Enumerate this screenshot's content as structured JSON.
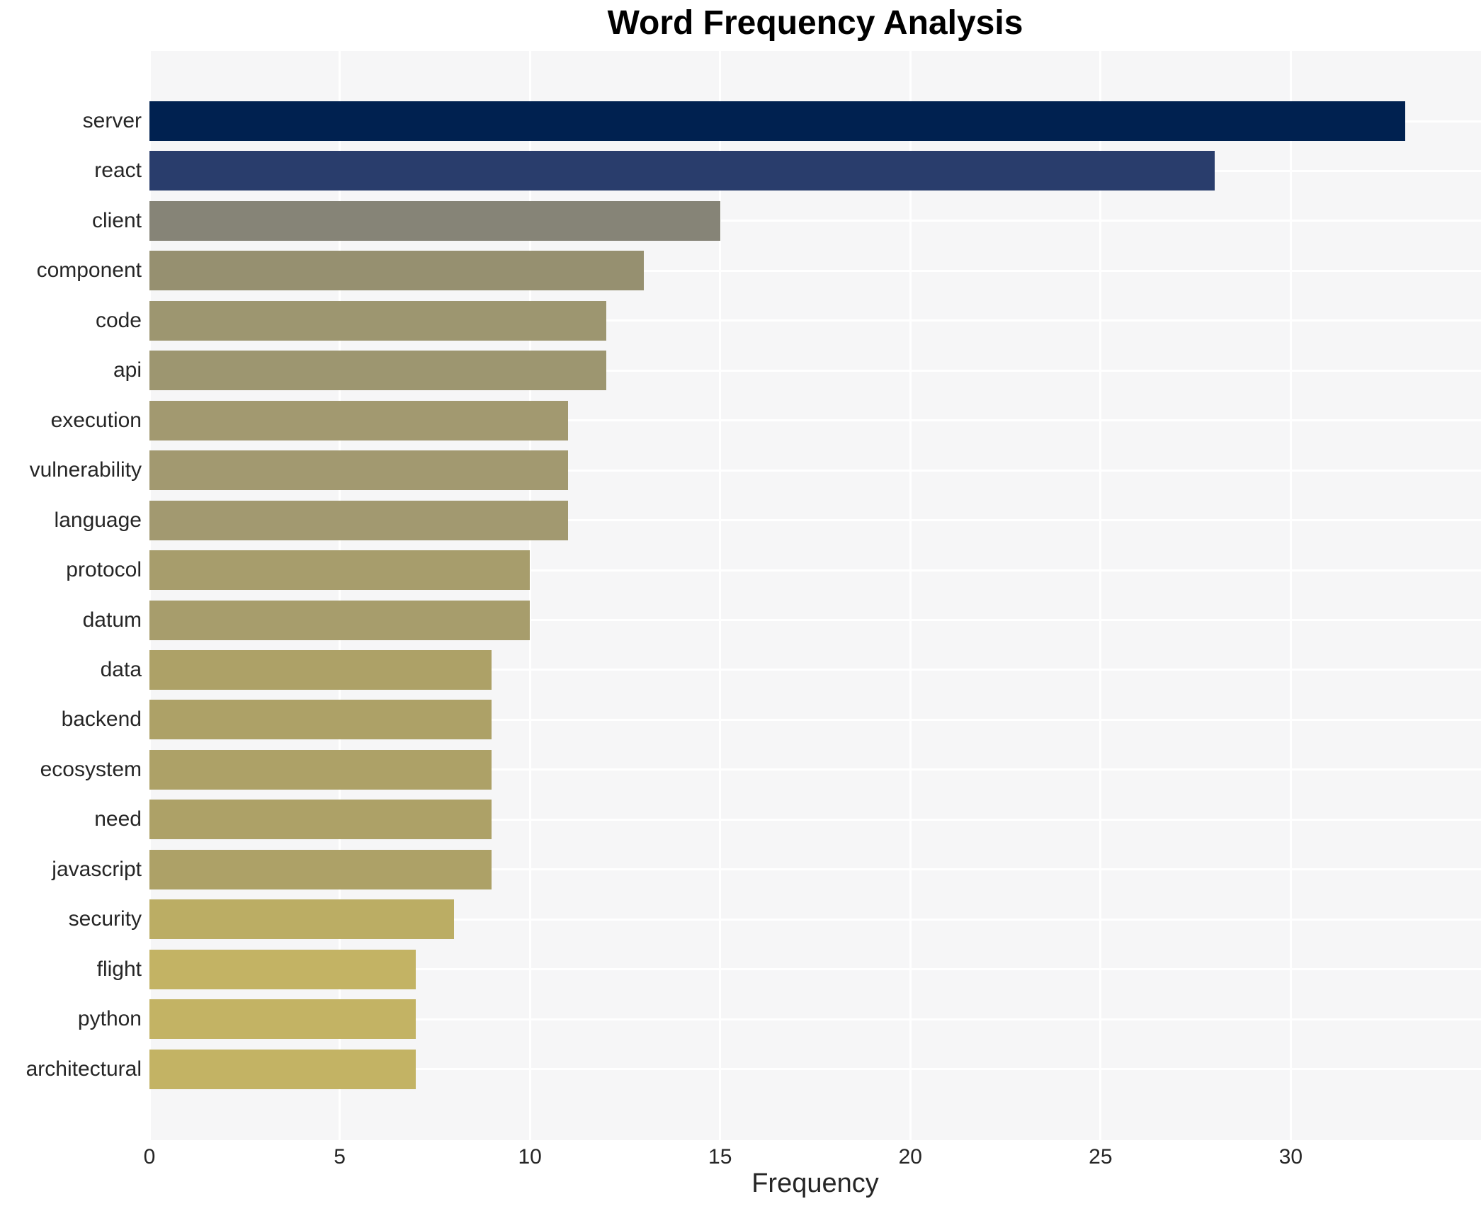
{
  "chart_data": {
    "type": "bar",
    "orientation": "horizontal",
    "title": "Word Frequency Analysis",
    "xlabel": "Frequency",
    "ylabel": "",
    "legend": null,
    "grid": true,
    "plot_background": "#f6f6f7",
    "gridline_color": "#ffffff",
    "xlim": [
      0,
      35
    ],
    "xticks": [
      0,
      5,
      10,
      15,
      20,
      25,
      30
    ],
    "categories": [
      "server",
      "react",
      "client",
      "component",
      "code",
      "api",
      "execution",
      "vulnerability",
      "language",
      "protocol",
      "datum",
      "data",
      "backend",
      "ecosystem",
      "need",
      "javascript",
      "security",
      "flight",
      "python",
      "architectural"
    ],
    "values": [
      33,
      28,
      15,
      13,
      12,
      12,
      11,
      11,
      11,
      10,
      10,
      9,
      9,
      9,
      9,
      9,
      8,
      7,
      7,
      7
    ],
    "bar_colors": [
      "#002150",
      "#293d6c",
      "#868477",
      "#969070",
      "#9d9670",
      "#9d9670",
      "#a29970",
      "#a29970",
      "#a29970",
      "#a79d6c",
      "#a79d6c",
      "#ada167",
      "#ada167",
      "#ada167",
      "#ada167",
      "#ada167",
      "#bbad64",
      "#c3b364",
      "#c3b364",
      "#c3b364"
    ]
  }
}
